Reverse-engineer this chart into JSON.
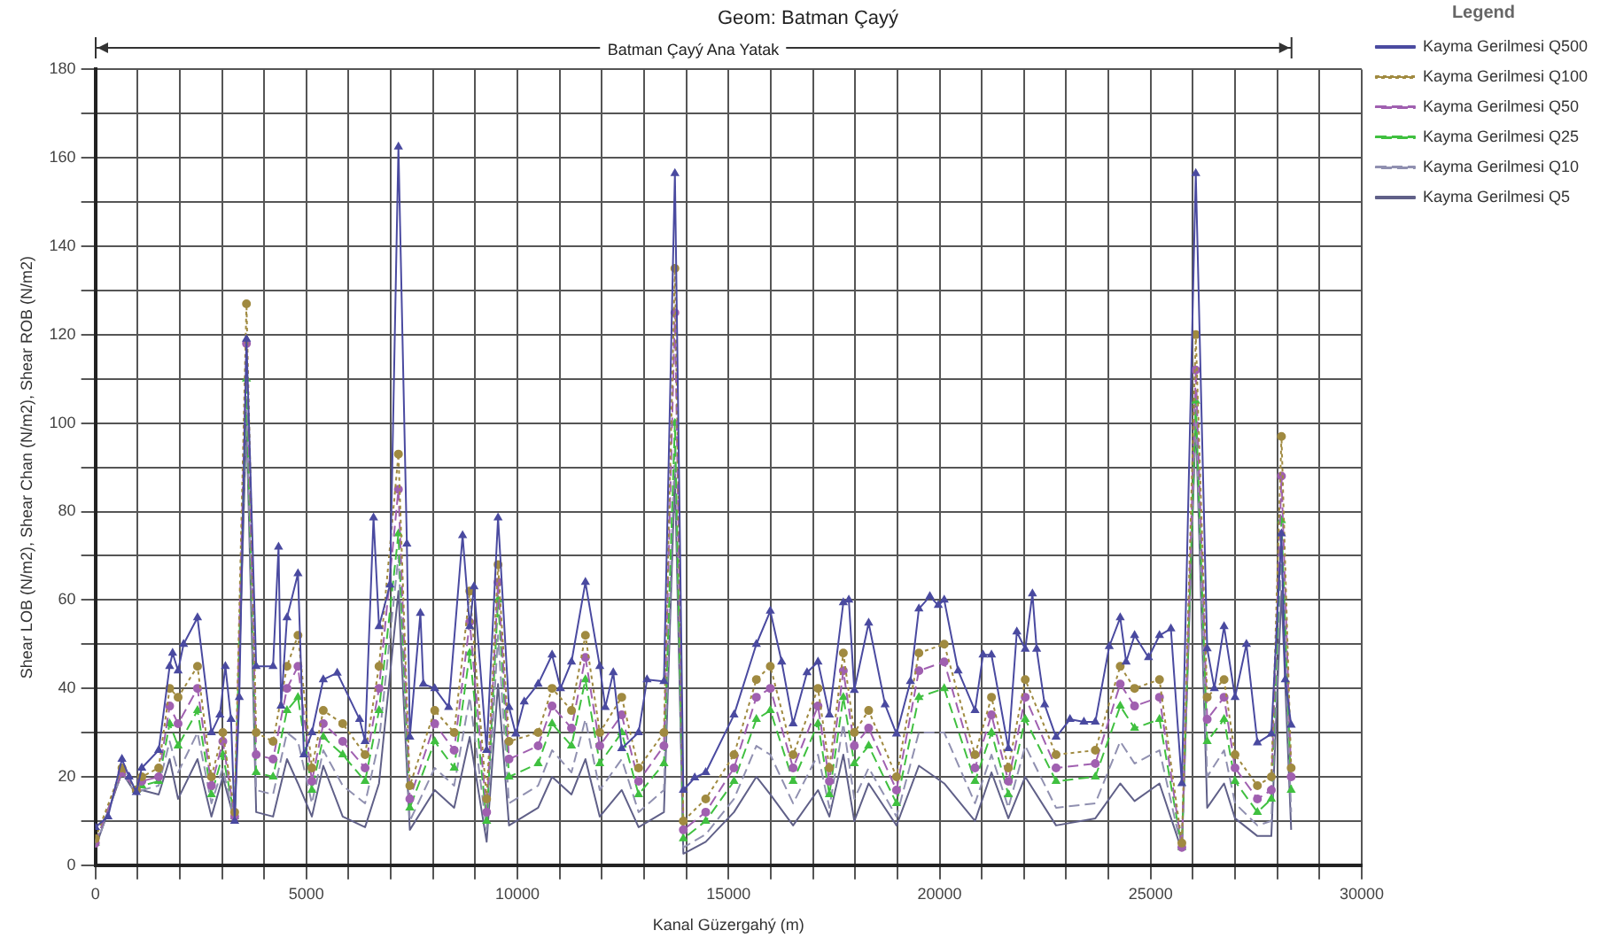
{
  "chart_data": {
    "type": "line",
    "title": "Geom: Batman Çayý",
    "xlabel": "Kanal Güzergahý (m)",
    "ylabel": "Shear LOB (N/m2), Shear Chan (N/m2), Shear ROB (N/m2)",
    "legend_title": "Legend",
    "legend": "top right",
    "grid": true,
    "xlim": [
      0,
      30000
    ],
    "ylim": [
      0,
      180
    ],
    "xticks": [
      0,
      {
        "value": 1000,
        "label": null
      },
      {
        "value": 2000,
        "label": null
      },
      {
        "value": 3000,
        "label": null
      },
      {
        "value": 4000,
        "label": null
      },
      5000,
      {
        "value": 6000,
        "label": null
      },
      {
        "value": 7000,
        "label": null
      },
      {
        "value": 8000,
        "label": null
      },
      {
        "value": 9000,
        "label": null
      },
      10000,
      {
        "value": 11000,
        "label": null
      },
      {
        "value": 12000,
        "label": null
      },
      {
        "value": 13000,
        "label": null
      },
      {
        "value": 14000,
        "label": null
      },
      15000,
      {
        "value": 16000,
        "label": null
      },
      {
        "value": 17000,
        "label": null
      },
      {
        "value": 18000,
        "label": null
      },
      {
        "value": 19000,
        "label": null
      },
      20000,
      {
        "value": 21000,
        "label": null
      },
      {
        "value": 22000,
        "label": null
      },
      {
        "value": 23000,
        "label": null
      },
      {
        "value": 24000,
        "label": null
      },
      25000,
      {
        "value": 26000,
        "label": null
      },
      {
        "value": 27000,
        "label": null
      },
      {
        "value": 28000,
        "label": null
      },
      {
        "value": 29000,
        "label": null
      },
      30000
    ],
    "yticks": [
      0,
      {
        "value": 10,
        "label": null
      },
      20,
      {
        "value": 30,
        "label": null
      },
      40,
      {
        "value": 50,
        "label": null
      },
      60,
      {
        "value": 70,
        "label": null
      },
      80,
      {
        "value": 90,
        "label": null
      },
      100,
      {
        "value": 110,
        "label": null
      },
      120,
      {
        "value": 130,
        "label": null
      },
      140,
      {
        "value": 150,
        "label": null
      },
      160,
      {
        "value": 170,
        "label": null
      },
      180
    ],
    "annotations": [
      "Batman Çayý Ana Yatak"
    ],
    "series": [
      {
        "name": "Kayma Gerilmesi Q500",
        "color": "#4a4aa0",
        "line_style": "solid",
        "marker": "triangle",
        "x": [
          0,
          300,
          630,
          800,
          970,
          1100,
          1500,
          1760,
          1830,
          1960,
          2090,
          2420,
          2750,
          2950,
          3080,
          3215,
          3300,
          3410,
          3580,
          3810,
          4210,
          4340,
          4400,
          4540,
          4800,
          4940,
          5130,
          5400,
          5730,
          6260,
          6390,
          6590,
          6720,
          6980,
          7180,
          7380,
          7450,
          7700,
          7770,
          8040,
          8370,
          8700,
          8870,
          8970,
          9270,
          9540,
          9800,
          9960,
          10160,
          10490,
          10820,
          11020,
          11280,
          11610,
          11950,
          12080,
          12270,
          12470,
          12870,
          13070,
          13470,
          13730,
          13930,
          14200,
          14460,
          15130,
          15660,
          15990,
          16260,
          16530,
          16860,
          17120,
          17390,
          17720,
          17850,
          17980,
          18320,
          18710,
          18980,
          19310,
          19510,
          19770,
          19970,
          20110,
          20440,
          20840,
          21030,
          21230,
          21630,
          21830,
          22030,
          22200,
          22300,
          22490,
          22760,
          23090,
          23420,
          23690,
          24020,
          24280,
          24420,
          24620,
          24950,
          25210,
          25480,
          25740,
          26070,
          26340,
          26510,
          26740,
          27000,
          27270,
          27530,
          27860,
          28100,
          28190,
          28330
        ],
        "values": [
          8.6,
          11,
          24,
          20,
          16.5,
          22,
          26,
          45,
          48,
          44,
          50,
          56,
          30,
          34,
          45,
          33,
          10,
          38,
          119,
          45,
          45,
          72,
          36,
          56,
          66,
          25,
          30,
          42,
          43.5,
          33,
          28,
          78.6,
          54,
          63.4,
          162.5,
          72.7,
          29,
          57,
          41,
          40,
          35.7,
          74.6,
          54,
          63,
          26,
          78.6,
          35.7,
          29.7,
          37,
          41,
          47.6,
          40,
          46,
          64,
          45,
          35.7,
          43.6,
          26.4,
          30,
          42,
          41.6,
          156.5,
          17,
          19.8,
          21,
          34,
          50,
          57.5,
          46,
          32,
          43.6,
          46,
          34,
          59.4,
          60,
          39.6,
          54.8,
          36.3,
          29.7,
          41.6,
          58,
          60.8,
          58.8,
          60,
          44,
          35,
          47.6,
          47.6,
          26.4,
          52.8,
          48.9,
          61.4,
          48.9,
          36.3,
          29,
          33,
          32.4,
          32.4,
          49.5,
          56,
          46,
          52,
          47,
          52,
          53.5,
          18.5,
          156.5,
          49,
          40,
          54,
          38,
          50,
          27.7,
          29.7,
          75,
          42,
          31.7
        ]
      },
      {
        "name": "Kayma Gerilmesi Q100",
        "color": "#a08a40",
        "line_style": "dotted",
        "marker": "circle",
        "values": [
          6,
          22,
          17,
          20,
          22,
          40,
          38,
          45,
          20,
          30,
          12,
          127,
          30,
          28,
          45,
          52,
          22,
          35,
          32,
          25,
          45,
          93,
          18,
          35,
          30,
          62,
          15,
          68,
          28,
          30,
          40,
          35,
          52,
          30,
          38,
          22,
          30,
          135,
          10,
          15,
          25,
          42,
          45,
          25,
          40,
          22,
          48,
          30,
          35,
          20,
          48,
          50,
          25,
          38,
          22,
          42,
          25,
          26,
          45,
          40,
          42,
          5,
          120,
          38,
          42,
          25,
          18,
          20,
          97,
          22
        ]
      },
      {
        "name": "Kayma Gerilmesi Q50",
        "color": "#a060b0",
        "line_style": "dashed",
        "marker": "circle",
        "values": [
          5,
          21,
          17,
          19,
          20,
          36,
          32,
          40,
          18,
          28,
          11,
          118,
          25,
          24,
          40,
          45,
          19,
          32,
          28,
          22,
          40,
          85,
          15,
          32,
          26,
          55,
          12,
          64,
          24,
          27,
          36,
          31,
          47,
          27,
          34,
          19,
          27,
          125,
          8,
          12,
          22,
          38,
          40,
          22,
          36,
          19,
          44,
          27,
          31,
          17,
          44,
          46,
          22,
          34,
          19,
          38,
          22,
          23,
          41,
          36,
          38,
          4,
          112,
          33,
          38,
          22,
          15,
          17,
          88,
          20
        ]
      },
      {
        "name": "Kayma Gerilmesi Q25",
        "color": "#40c040",
        "line_style": "dashed",
        "marker": "triangle",
        "values": [
          5,
          21,
          17,
          18,
          19,
          32,
          27,
          35,
          16,
          25,
          11,
          110,
          21,
          20,
          35,
          38,
          17,
          29,
          25,
          19,
          35,
          75,
          13,
          28,
          22,
          48,
          10,
          60,
          20,
          23,
          32,
          27,
          42,
          23,
          30,
          16,
          23,
          100,
          6,
          10,
          19,
          33,
          35,
          19,
          32,
          16,
          38,
          23,
          27,
          14,
          38,
          40,
          19,
          30,
          16,
          33,
          19,
          20,
          36,
          31,
          33,
          4,
          105,
          28,
          33,
          19,
          12,
          15,
          78,
          17
        ]
      },
      {
        "name": "Kayma Gerilmesi Q10",
        "color": "#9090b0",
        "line_style": "dashed",
        "marker": "none",
        "values": [
          4,
          21,
          16,
          17,
          18,
          28,
          21,
          30,
          14,
          22,
          10,
          105,
          17,
          16,
          30,
          28,
          14,
          26,
          18,
          14,
          28,
          70,
          10,
          22,
          18,
          38,
          8,
          52,
          14,
          18,
          26,
          21,
          33,
          17,
          24,
          12,
          17,
          95,
          4,
          7,
          15,
          27,
          25,
          14,
          25,
          13,
          32,
          15,
          22,
          11,
          30,
          30,
          14,
          25,
          13,
          27,
          13,
          14,
          28,
          23,
          26,
          3.5,
          103,
          20,
          26,
          14,
          9,
          10,
          70,
          12
        ]
      },
      {
        "name": "Kayma Gerilmesi Q5",
        "color": "#606088",
        "line_style": "solid",
        "marker": "none",
        "values": [
          4,
          21,
          16,
          17,
          16,
          24,
          15,
          24,
          11,
          20,
          10,
          101,
          12,
          11,
          24,
          18.5,
          11,
          22.5,
          11,
          8.6,
          18.5,
          62,
          8,
          17,
          13,
          29,
          5.3,
          41,
          9,
          13,
          20,
          16,
          24,
          11,
          17,
          8.6,
          12,
          88.5,
          2.6,
          5.3,
          12,
          20,
          16,
          9,
          17,
          11,
          25,
          10,
          18.5,
          9,
          22.5,
          18.5,
          10,
          21,
          10.6,
          20,
          9,
          10.6,
          18.5,
          14.5,
          18.5,
          3.3,
          101,
          13,
          18.5,
          10.6,
          6.6,
          6.6,
          62,
          8
        ]
      }
    ],
    "x": [
      0,
      630,
      970,
      1100,
      1500,
      1760,
      1960,
      2420,
      2750,
      3020,
      3300,
      3580,
      3810,
      4210,
      4540,
      4800,
      5130,
      5400,
      5860,
      6390,
      6720,
      7180,
      7450,
      8040,
      8500,
      8870,
      9270,
      9540,
      9800,
      10490,
      10820,
      11280,
      11610,
      11950,
      12470,
      12870,
      13470,
      13730,
      13930,
      14460,
      15130,
      15660,
      15990,
      16530,
      17120,
      17390,
      17720,
      17980,
      18320,
      18980,
      19510,
      20110,
      20840,
      21230,
      21630,
      22030,
      22760,
      23690,
      24280,
      24620,
      25210,
      25740,
      26070,
      26340,
      26740,
      27000,
      27530,
      27860,
      28100,
      28330
    ]
  }
}
